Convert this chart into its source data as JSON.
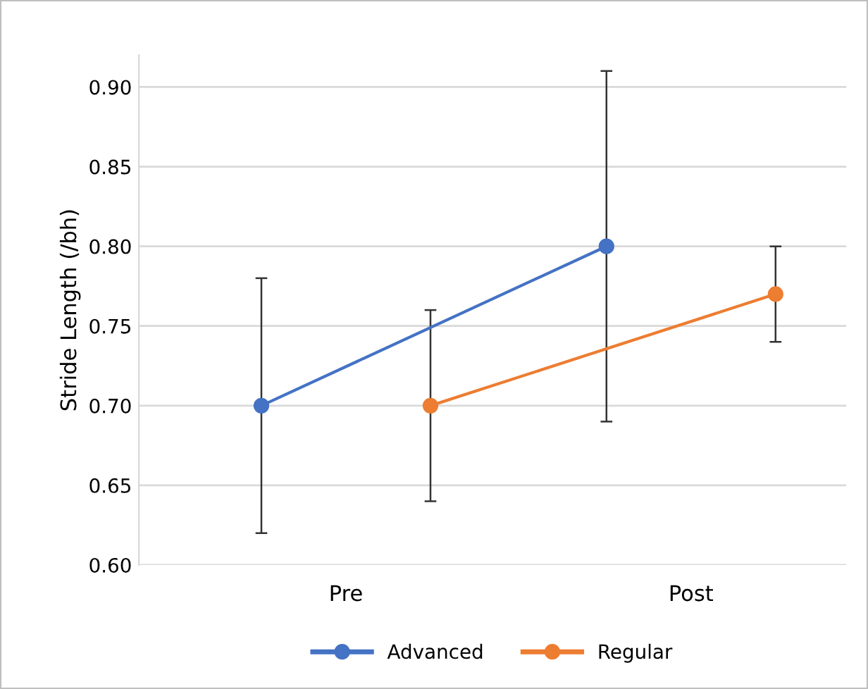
{
  "chart_data": {
    "type": "line",
    "ylabel": "Stride Length (/bh)",
    "categories": [
      "Pre",
      "Post"
    ],
    "ylim": [
      0.6,
      0.92
    ],
    "yticks": [
      {
        "value": 0.6,
        "label": "0.60"
      },
      {
        "value": 0.65,
        "label": "0.65"
      },
      {
        "value": 0.7,
        "label": "0.70"
      },
      {
        "value": 0.75,
        "label": "0.75"
      },
      {
        "value": 0.8,
        "label": "0.80"
      },
      {
        "value": 0.85,
        "label": "0.85"
      },
      {
        "value": 0.9,
        "label": "0.90"
      }
    ],
    "grid": "y",
    "legend": "bottom",
    "marker": "circle",
    "series": [
      {
        "name": "Advanced",
        "color": "#4472c4",
        "values": [
          0.7,
          0.8
        ],
        "errors": [
          0.08,
          0.11
        ]
      },
      {
        "name": "Regular",
        "color": "#ed7d31",
        "values": [
          0.7,
          0.77
        ],
        "errors": [
          0.06,
          0.03
        ]
      }
    ]
  }
}
